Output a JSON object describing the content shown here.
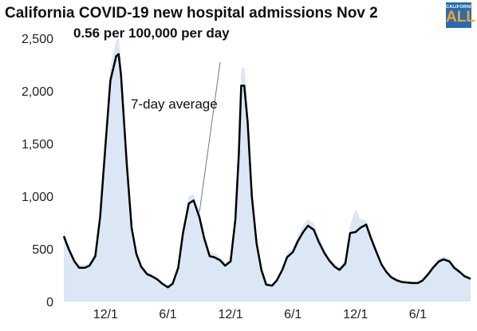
{
  "header": {
    "title": "California COVID-19 new hospital admissions Nov 2",
    "subtitle": "0.56 per 100,000 per day"
  },
  "logo": {
    "top_text": "CALIFORNIA",
    "main_text": "ALL"
  },
  "colors": {
    "daily_fill": "#dbe7f4",
    "avg_line": "#000000",
    "logo_bg": "#2b6cb0",
    "logo_text": "#f5a623"
  },
  "chart_data": {
    "type": "area",
    "title": "California COVID-19 new hospital admissions Nov 2",
    "subtitle": "0.56 per 100,000 per day",
    "annotation": "7-day average",
    "xlabel": "",
    "ylabel": "",
    "ylim": [
      0,
      2500
    ],
    "yticks": [
      0,
      500,
      1000,
      1500,
      2000,
      2500
    ],
    "ytick_labels": [
      "0",
      "500",
      "1,000",
      "1,500",
      "2,000",
      "2,500"
    ],
    "xticks": [
      "2020-12-01",
      "2021-06-01",
      "2021-12-01",
      "2022-06-01",
      "2022-12-01",
      "2023-06-01"
    ],
    "xtick_labels": [
      "12/1",
      "6/1",
      "12/1",
      "6/1",
      "12/1",
      "6/1"
    ],
    "xlim": [
      "2020-08-01",
      "2023-11-02"
    ],
    "grid": false,
    "series": [
      {
        "name": "7-day average",
        "style": "line",
        "x": [
          "2020-08-01",
          "2020-08-15",
          "2020-09-01",
          "2020-09-15",
          "2020-10-01",
          "2020-10-15",
          "2020-11-01",
          "2020-11-15",
          "2020-12-01",
          "2020-12-15",
          "2021-01-01",
          "2021-01-08",
          "2021-01-15",
          "2021-02-01",
          "2021-02-15",
          "2021-03-01",
          "2021-03-15",
          "2021-04-01",
          "2021-04-15",
          "2021-05-01",
          "2021-05-15",
          "2021-06-01",
          "2021-06-15",
          "2021-07-01",
          "2021-07-15",
          "2021-08-01",
          "2021-08-15",
          "2021-09-01",
          "2021-09-15",
          "2021-10-01",
          "2021-10-15",
          "2021-11-01",
          "2021-11-15",
          "2021-12-01",
          "2021-12-15",
          "2021-12-25",
          "2022-01-01",
          "2022-01-10",
          "2022-01-20",
          "2022-02-01",
          "2022-02-15",
          "2022-03-01",
          "2022-03-15",
          "2022-04-01",
          "2022-04-15",
          "2022-05-01",
          "2022-05-15",
          "2022-06-01",
          "2022-06-15",
          "2022-07-01",
          "2022-07-15",
          "2022-08-01",
          "2022-08-15",
          "2022-09-01",
          "2022-09-15",
          "2022-10-01",
          "2022-10-15",
          "2022-11-01",
          "2022-11-15",
          "2022-12-01",
          "2022-12-15",
          "2023-01-01",
          "2023-01-15",
          "2023-02-01",
          "2023-02-15",
          "2023-03-01",
          "2023-03-15",
          "2023-04-01",
          "2023-04-15",
          "2023-05-01",
          "2023-05-15",
          "2023-06-01",
          "2023-06-15",
          "2023-07-01",
          "2023-07-15",
          "2023-08-01",
          "2023-08-15",
          "2023-09-01",
          "2023-09-15",
          "2023-10-01",
          "2023-10-15",
          "2023-11-02"
        ],
        "values": [
          620,
          500,
          380,
          320,
          320,
          340,
          430,
          800,
          1500,
          2100,
          2330,
          2350,
          2150,
          1300,
          700,
          450,
          330,
          260,
          240,
          210,
          170,
          135,
          170,
          320,
          650,
          930,
          960,
          800,
          600,
          430,
          420,
          390,
          340,
          380,
          780,
          1400,
          2050,
          2050,
          1700,
          1000,
          550,
          300,
          160,
          150,
          200,
          300,
          420,
          470,
          570,
          660,
          720,
          680,
          570,
          460,
          390,
          330,
          300,
          360,
          650,
          660,
          700,
          730,
          600,
          460,
          350,
          280,
          230,
          200,
          185,
          180,
          175,
          175,
          200,
          260,
          320,
          380,
          400,
          380,
          320,
          280,
          240,
          215
        ]
      },
      {
        "name": "",
        "style": "area",
        "x": [
          "2020-08-01",
          "2020-08-15",
          "2020-09-01",
          "2020-09-15",
          "2020-10-01",
          "2020-10-15",
          "2020-11-01",
          "2020-11-15",
          "2020-12-01",
          "2020-12-15",
          "2021-01-01",
          "2021-01-08",
          "2021-01-15",
          "2021-02-01",
          "2021-02-15",
          "2021-03-01",
          "2021-03-15",
          "2021-04-01",
          "2021-04-15",
          "2021-05-01",
          "2021-05-15",
          "2021-06-01",
          "2021-06-15",
          "2021-07-01",
          "2021-07-15",
          "2021-08-01",
          "2021-08-15",
          "2021-09-01",
          "2021-09-15",
          "2021-10-01",
          "2021-10-15",
          "2021-11-01",
          "2021-11-15",
          "2021-12-01",
          "2021-12-15",
          "2021-12-25",
          "2022-01-01",
          "2022-01-10",
          "2022-01-20",
          "2022-02-01",
          "2022-02-15",
          "2022-03-01",
          "2022-03-15",
          "2022-04-01",
          "2022-04-15",
          "2022-05-01",
          "2022-05-15",
          "2022-06-01",
          "2022-06-15",
          "2022-07-01",
          "2022-07-15",
          "2022-08-01",
          "2022-08-15",
          "2022-09-01",
          "2022-09-15",
          "2022-10-01",
          "2022-10-15",
          "2022-11-01",
          "2022-11-15",
          "2022-12-01",
          "2022-12-15",
          "2023-01-01",
          "2023-01-15",
          "2023-02-01",
          "2023-02-15",
          "2023-03-01",
          "2023-03-15",
          "2023-04-01",
          "2023-04-15",
          "2023-05-01",
          "2023-05-15",
          "2023-06-01",
          "2023-06-15",
          "2023-07-01",
          "2023-07-15",
          "2023-08-01",
          "2023-08-15",
          "2023-09-01",
          "2023-09-15",
          "2023-10-01",
          "2023-10-15",
          "2023-11-02"
        ],
        "values": [
          680,
          540,
          410,
          350,
          350,
          370,
          470,
          870,
          1600,
          2230,
          2480,
          2500,
          2300,
          1400,
          760,
          490,
          360,
          280,
          260,
          230,
          190,
          150,
          190,
          350,
          700,
          1000,
          1020,
          860,
          650,
          470,
          460,
          420,
          370,
          420,
          850,
          1520,
          2200,
          2230,
          1830,
          1080,
          600,
          330,
          180,
          170,
          220,
          330,
          460,
          510,
          620,
          720,
          780,
          740,
          620,
          500,
          420,
          360,
          330,
          390,
          720,
          880,
          780,
          770,
          650,
          500,
          380,
          300,
          250,
          220,
          200,
          195,
          190,
          190,
          220,
          280,
          350,
          410,
          430,
          410,
          350,
          300,
          260,
          235
        ]
      }
    ]
  }
}
